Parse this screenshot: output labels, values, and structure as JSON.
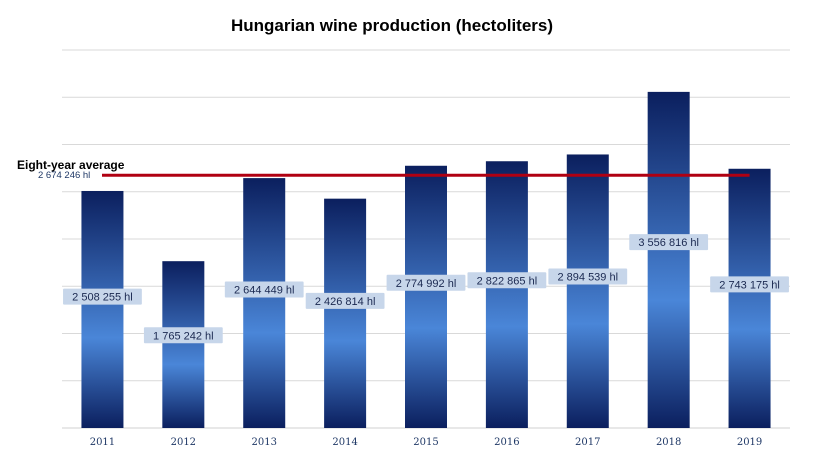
{
  "chart_data": {
    "type": "bar",
    "title": "Hungarian wine production (hectoliters)",
    "xlabel": "",
    "ylabel": "",
    "categories": [
      "2011",
      "2012",
      "2013",
      "2014",
      "2015",
      "2016",
      "2017",
      "2018",
      "2019"
    ],
    "values": [
      2508255,
      1765242,
      2644449,
      2426814,
      2774992,
      2822865,
      2894539,
      3556816,
      2743175
    ],
    "data_labels": [
      "2 508 255 hl",
      "1 765 242 hl",
      "2 644 449 hl",
      "2 426 814 hl",
      "2 774 992 hl",
      "2 822 865 hl",
      "2 894 539 hl",
      "3 556 816 hl",
      "2 743 175 hl"
    ],
    "ylim": [
      0,
      4000000
    ],
    "y_gridline_step": 500000,
    "grid": true,
    "reference_line": {
      "title": "Eight-year average",
      "value": 2674246,
      "label": "2 674 246 hl",
      "color": "#b00012"
    },
    "colors": {
      "bar_dark": "#0b1f5e",
      "bar_light": "#4a86d8",
      "gridline": "#d9d9d9",
      "label_box": "#c7d6ea"
    }
  }
}
